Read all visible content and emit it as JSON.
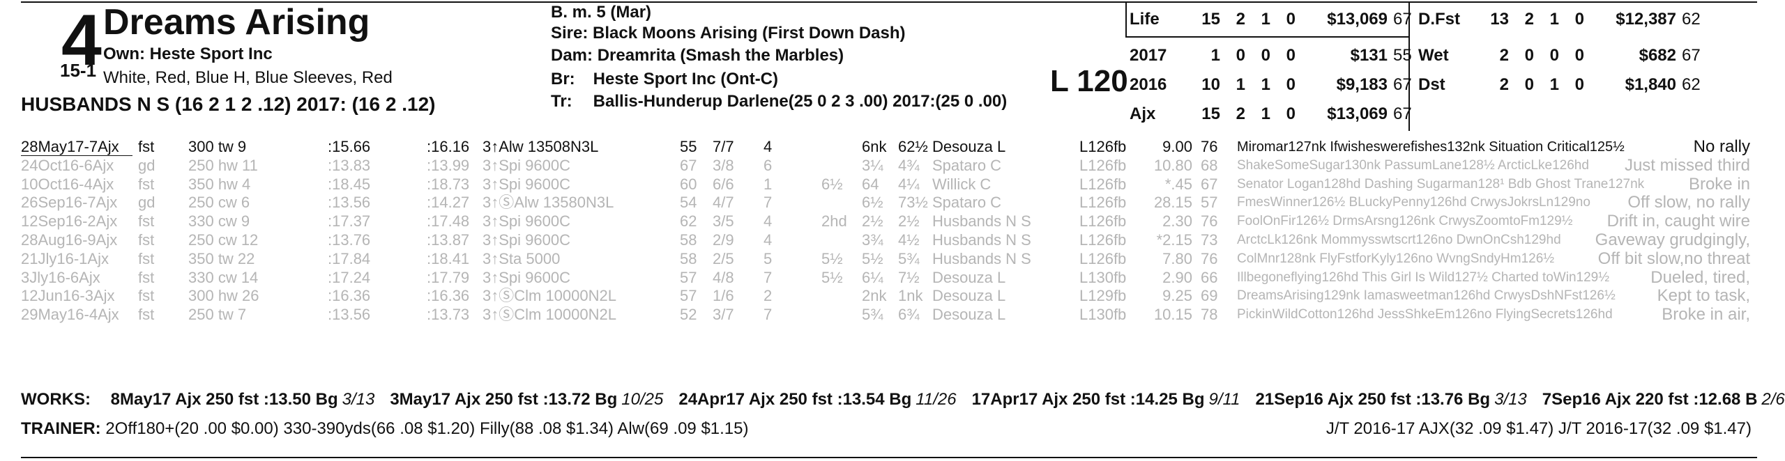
{
  "header": {
    "program_number": "4",
    "odds": "15-1",
    "horse_name": "Dreams Arising",
    "owner": "Own: Heste Sport Inc",
    "silks": "White, Red, Blue H, Blue Sleeves, Red",
    "jockey_line": "HUSBANDS N S (16 2 1 2 .12) 2017: (16 2 .12)",
    "breeding": {
      "sex_age": "B. m. 5 (Mar)",
      "sire_label": "Sire:",
      "sire": "Black Moons Arising (First Down Dash)",
      "dam_label": "Dam:",
      "dam": "Dreamrita (Smash the Marbles)",
      "breeder_label": "Br:",
      "breeder": "Heste Sport Inc (Ont-C)",
      "trainer_label": "Tr:",
      "trainer": "Ballis-Hunderup Darlene(25 0 2 3 .00) 2017:(25 0 .00)"
    },
    "weight": "L 120"
  },
  "stats_left": [
    {
      "label": "Life",
      "starts": "15",
      "w": "2",
      "p": "1",
      "s": "0",
      "earnings": "$13,069",
      "speed": "67"
    },
    {
      "label": "2017",
      "starts": "1",
      "w": "0",
      "p": "0",
      "s": "0",
      "earnings": "$131",
      "speed": "55"
    },
    {
      "label": "2016",
      "starts": "10",
      "w": "1",
      "p": "1",
      "s": "0",
      "earnings": "$9,183",
      "speed": "67"
    },
    {
      "label": "Ajx",
      "starts": "15",
      "w": "2",
      "p": "1",
      "s": "0",
      "earnings": "$13,069",
      "speed": "67"
    }
  ],
  "stats_right": [
    {
      "label": "D.Fst",
      "starts": "13",
      "w": "2",
      "p": "1",
      "s": "0",
      "earnings": "$12,387",
      "speed": "62"
    },
    {
      "label": "Wet",
      "starts": "2",
      "w": "0",
      "p": "0",
      "s": "0",
      "earnings": "$682",
      "speed": "67"
    },
    {
      "label": "Dst",
      "starts": "2",
      "w": "0",
      "p": "1",
      "s": "0",
      "earnings": "$1,840",
      "speed": "62"
    }
  ],
  "past_performances": [
    {
      "date": "28May17-7Ajx",
      "cond": "fst",
      "dist": "300 tw 9",
      "f1": ":15.66",
      "f2": ":16.16",
      "race": "3↑Alw 13508N3L",
      "spd": "55",
      "pp": "7/7",
      "st": "4",
      "c1": "",
      "c2": "6nk",
      "fin": "62½",
      "jockey": "Desouza L",
      "med": "L126fb",
      "odds": "9.00",
      "sr": "76",
      "comment": "Miromar127nk Ifwisheswerefishes132nk Situation Critical125½",
      "note": "No rally",
      "current": true
    },
    {
      "date": "24Oct16-6Ajx",
      "cond": "gd",
      "dist": "250 hw 11",
      "f1": ":13.83",
      "f2": ":13.99",
      "race": "3↑Spi 9600C",
      "spd": "67",
      "pp": "3/8",
      "st": "6",
      "c1": "",
      "c2": "3¼",
      "fin": "4¾",
      "jockey": "Spataro C",
      "med": "L126fb",
      "odds": "10.80",
      "sr": "68",
      "comment": "ShakeSomeSugar130nk PassumLane128½ ArcticLke126hd",
      "note": "Just missed third",
      "current": false
    },
    {
      "date": "10Oct16-4Ajx",
      "cond": "fst",
      "dist": "350 hw 4",
      "f1": ":18.45",
      "f2": ":18.73",
      "race": "3↑Spi 9600C",
      "spd": "60",
      "pp": "6/6",
      "st": "1",
      "c1": "6½",
      "c2": "64",
      "fin": "4¼",
      "jockey": "Willick C",
      "med": "L126fb",
      "odds": "*.45",
      "sr": "67",
      "comment": "Senator Logan128hd Dashing Sugarman128¹ Bdb Ghost Trane127nk",
      "note": "Broke in",
      "current": false
    },
    {
      "date": "26Sep16-7Ajx",
      "cond": "gd",
      "dist": "250 cw 6",
      "f1": ":13.56",
      "f2": ":14.27",
      "race": "3↑ⓈAlw 13580N3L",
      "spd": "54",
      "pp": "4/7",
      "st": "7",
      "c1": "",
      "c2": "6½",
      "fin": "73½",
      "jockey": "Spataro C",
      "med": "L126fb",
      "odds": "28.15",
      "sr": "57",
      "comment": "FmesWinner126½ BLuckyPenny126hd CrwysJokrsLn129no",
      "note": "Off slow, no rally",
      "current": false
    },
    {
      "date": "12Sep16-2Ajx",
      "cond": "fst",
      "dist": "330 cw 9",
      "f1": ":17.37",
      "f2": ":17.48",
      "race": "3↑Spi 9600C",
      "spd": "62",
      "pp": "3/5",
      "st": "4",
      "c1": "2hd",
      "c2": "2½",
      "fin": "2½",
      "jockey": "Husbands N S",
      "med": "L126fb",
      "odds": "2.30",
      "sr": "76",
      "comment": "FoolOnFir126½ DrmsArsng126nk CrwysZoomtoFm129½",
      "note": "Drift in, caught wire",
      "current": false
    },
    {
      "date": "28Aug16-9Ajx",
      "cond": "fst",
      "dist": "250 cw 12",
      "f1": ":13.76",
      "f2": ":13.87",
      "race": "3↑Spi 9600C",
      "spd": "58",
      "pp": "2/9",
      "st": "4",
      "c1": "",
      "c2": "3¾",
      "fin": "4½",
      "jockey": "Husbands N S",
      "med": "L126fb",
      "odds": "*2.15",
      "sr": "73",
      "comment": "ArctcLk126nk Mommysswtscrt126no DwnOnCsh129hd",
      "note": "Gaveway grudgingly,",
      "current": false
    },
    {
      "date": "21Jly16-1Ajx",
      "cond": "fst",
      "dist": "350 tw 22",
      "f1": ":17.84",
      "f2": ":18.41",
      "race": "3↑Sta 5000",
      "spd": "58",
      "pp": "2/5",
      "st": "5",
      "c1": "5½",
      "c2": "5½",
      "fin": "5¾",
      "jockey": "Husbands N S",
      "med": "L126fb",
      "odds": "7.80",
      "sr": "76",
      "comment": "ColMnr128nk FlyFstforKyly126no WvngSndyHm126½",
      "note": "Off bit slow,no threat",
      "current": false
    },
    {
      "date": "3Jly16-6Ajx",
      "cond": "fst",
      "dist": "330 cw 14",
      "f1": ":17.24",
      "f2": ":17.79",
      "race": "3↑Spi 9600C",
      "spd": "57",
      "pp": "4/8",
      "st": "7",
      "c1": "5½",
      "c2": "6¼",
      "fin": "7½",
      "jockey": "Desouza L",
      "med": "L130fb",
      "odds": "2.90",
      "sr": "66",
      "comment": "Illbegoneflying126hd This Girl Is Wild127½ Charted toWin129½",
      "note": "Dueled, tired,",
      "current": false
    },
    {
      "date": "12Jun16-3Ajx",
      "cond": "fst",
      "dist": "300 hw 26",
      "f1": ":16.36",
      "f2": ":16.36",
      "race": "3↑ⓈClm 10000N2L",
      "spd": "57",
      "pp": "1/6",
      "st": "2",
      "c1": "",
      "c2": "2nk",
      "fin": "1nk",
      "jockey": "Desouza L",
      "med": "L129fb",
      "odds": "9.25",
      "sr": "69",
      "comment": "DreamsArising129nk Iamasweetman126hd CrwysDshNFst126½",
      "note": "Kept to task,",
      "current": false
    },
    {
      "date": "29May16-4Ajx",
      "cond": "fst",
      "dist": "250 tw 7",
      "f1": ":13.56",
      "f2": ":13.73",
      "race": "3↑ⓈClm 10000N2L",
      "spd": "52",
      "pp": "3/7",
      "st": "7",
      "c1": "",
      "c2": "5¾",
      "fin": "6¾",
      "jockey": "Desouza L",
      "med": "L130fb",
      "odds": "10.15",
      "sr": "78",
      "comment": "PickinWildCotton126hd JessShkeEm126no FlyingSecrets126hd",
      "note": "Broke in air,",
      "current": false
    }
  ],
  "works": {
    "label": "WORKS:",
    "entries": [
      {
        "text": "8May17 Ajx 250 fst :13.50 Bg",
        "rank": "3/13"
      },
      {
        "text": "3May17 Ajx 250 fst :13.72 Bg",
        "rank": "10/25"
      },
      {
        "text": "24Apr17 Ajx 250 fst :13.54 Bg",
        "rank": "11/26"
      },
      {
        "text": "17Apr17 Ajx 250 fst :14.25 Bg",
        "rank": "9/11"
      },
      {
        "text": "21Sep16 Ajx 250 fst :13.76 Bg",
        "rank": "3/13"
      },
      {
        "text": "7Sep16 Ajx 220 fst :12.68 B",
        "rank": "2/6"
      }
    ]
  },
  "trainer_stats": {
    "label": "TRAINER:",
    "text": "2Off180+(20 .00 $0.00) 330-390yds(66 .08 $1.20) Filly(88 .08 $1.34) Alw(69 .09 $1.15)",
    "jt": "J/T 2016-17 AJX(32 .09 $1.47) J/T 2016-17(32 .09 $1.47)"
  }
}
